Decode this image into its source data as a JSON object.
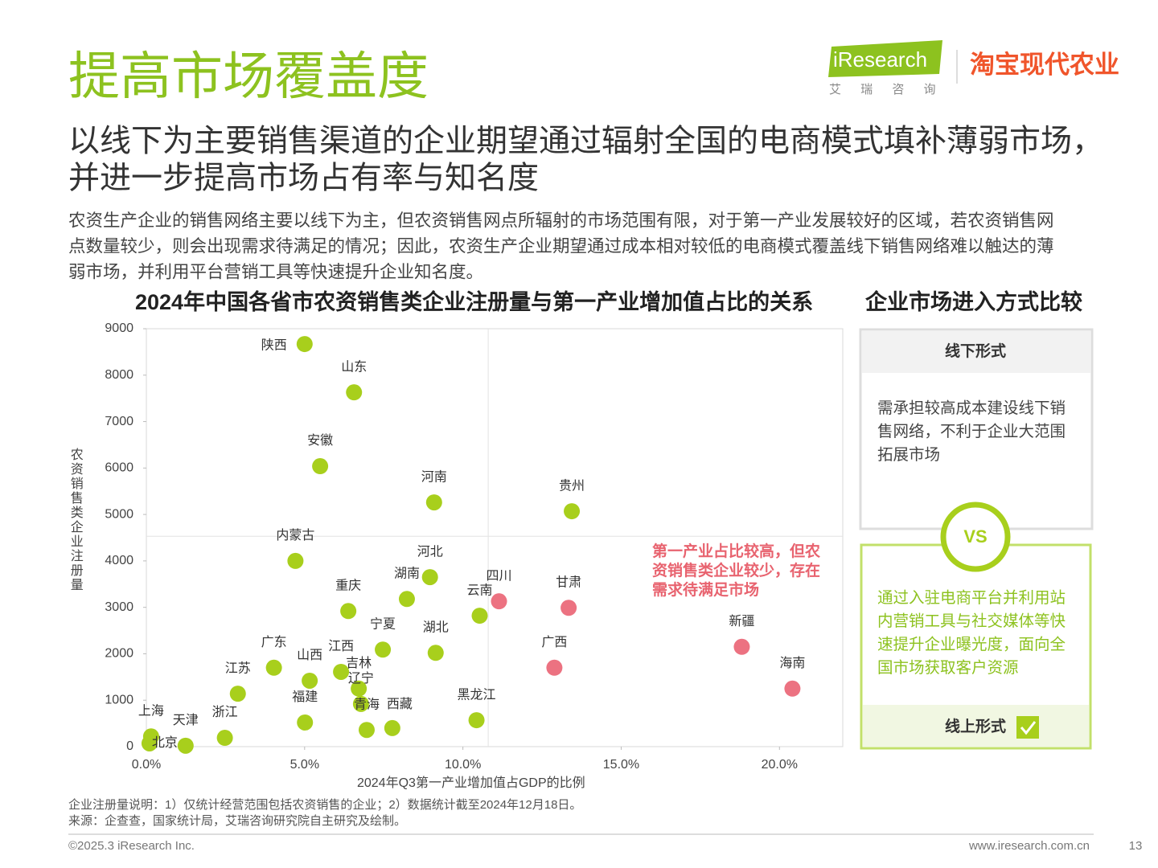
{
  "header": {
    "title": "提高市场覆盖度",
    "subtitle": [
      "以线下为主要销售渠道的企业期望通过辐射全国的电商模式填补薄弱市场，",
      "并进一步提高市场占有率与知名度"
    ],
    "body": [
      "农资生产企业的销售网络主要以线下为主，但农资销售网点所辐射的市场范围有限，对于第一产业发展较好的区域，若农资销售网",
      "点数量较少，则会出现需求待满足的情况；因此，农资生产企业期望通过成本相对较低的电商模式覆盖线下销售网络难以触达的薄",
      "弱市场，并利用平台营销工具等快速提升企业知名度。"
    ]
  },
  "logo": {
    "brand": "iResearch",
    "brand_cn": "艾 瑞 咨 询",
    "partner": "淘宝现代农业"
  },
  "chart_data": {
    "type": "scatter",
    "title": "2024年中国各省市农资销售类企业注册量与第一产业增加值占比的关系",
    "x_label": "2024年Q3第一产业增加值占GDP的比例",
    "y_label": "农资销售类企业注册量",
    "xlim": [
      0,
      22
    ],
    "ylim": [
      0,
      9000
    ],
    "xticks": [
      {
        "value": 0,
        "label": "0.0%"
      },
      {
        "value": 5,
        "label": "5.0%"
      },
      {
        "value": 10,
        "label": "10.0%"
      },
      {
        "value": 15,
        "label": "15.0%"
      },
      {
        "value": 20,
        "label": "20.0%"
      }
    ],
    "yticks": [
      0,
      1000,
      2000,
      3000,
      4000,
      5000,
      6000,
      7000,
      8000,
      9000
    ],
    "reference_lines": {
      "x": 10.8,
      "y": 4530
    },
    "annotation": [
      "第一产业占比较高，但农",
      "资销售类企业较少，存在",
      "需求待满足市场"
    ],
    "annotation_color": "#e8636f",
    "points": [
      {
        "label": "陕西",
        "x": 5.0,
        "y": 8670,
        "color": "#a8cf1c"
      },
      {
        "label": "山东",
        "x": 6.56,
        "y": 7630,
        "color": "#a8cf1c"
      },
      {
        "label": "安徽",
        "x": 5.49,
        "y": 6040,
        "color": "#a8cf1c"
      },
      {
        "label": "河南",
        "x": 9.09,
        "y": 5260,
        "color": "#a8cf1c"
      },
      {
        "label": "贵州",
        "x": 13.44,
        "y": 5070,
        "color": "#a8cf1c"
      },
      {
        "label": "内蒙古",
        "x": 4.71,
        "y": 4000,
        "color": "#a8cf1c"
      },
      {
        "label": "河北",
        "x": 8.96,
        "y": 3650,
        "color": "#a8cf1c"
      },
      {
        "label": "湖南",
        "x": 8.23,
        "y": 3180,
        "color": "#a8cf1c"
      },
      {
        "label": "重庆",
        "x": 6.38,
        "y": 2920,
        "color": "#a8cf1c"
      },
      {
        "label": "云南",
        "x": 10.53,
        "y": 2820,
        "color": "#a8cf1c"
      },
      {
        "label": "四川",
        "x": 11.14,
        "y": 3130,
        "color": "#ec7281"
      },
      {
        "label": "甘肃",
        "x": 13.34,
        "y": 2990,
        "color": "#ec7281"
      },
      {
        "label": "宁夏",
        "x": 7.47,
        "y": 2090,
        "color": "#a8cf1c"
      },
      {
        "label": "湖北",
        "x": 9.14,
        "y": 2020,
        "color": "#a8cf1c"
      },
      {
        "label": "新疆",
        "x": 18.81,
        "y": 2150,
        "color": "#ec7281"
      },
      {
        "label": "广西",
        "x": 12.89,
        "y": 1700,
        "color": "#ec7281"
      },
      {
        "label": "海南",
        "x": 20.41,
        "y": 1250,
        "color": "#ec7281"
      },
      {
        "label": "广东",
        "x": 4.03,
        "y": 1700,
        "color": "#a8cf1c"
      },
      {
        "label": "山西",
        "x": 5.16,
        "y": 1420,
        "color": "#a8cf1c"
      },
      {
        "label": "江西",
        "x": 6.15,
        "y": 1610,
        "color": "#a8cf1c"
      },
      {
        "label": "吉林",
        "x": 6.71,
        "y": 1250,
        "color": "#a8cf1c"
      },
      {
        "label": "辽宁",
        "x": 6.78,
        "y": 920,
        "color": "#a8cf1c"
      },
      {
        "label": "青海",
        "x": 6.96,
        "y": 360,
        "color": "#a8cf1c"
      },
      {
        "label": "西藏",
        "x": 7.77,
        "y": 400,
        "color": "#a8cf1c"
      },
      {
        "label": "江苏",
        "x": 2.89,
        "y": 1140,
        "color": "#a8cf1c"
      },
      {
        "label": "福建",
        "x": 5.01,
        "y": 520,
        "color": "#a8cf1c"
      },
      {
        "label": "黑龙江",
        "x": 10.43,
        "y": 570,
        "color": "#a8cf1c"
      },
      {
        "label": "浙江",
        "x": 2.48,
        "y": 190,
        "color": "#a8cf1c"
      },
      {
        "label": "上海",
        "x": 0.15,
        "y": 220,
        "color": "#a8cf1c"
      },
      {
        "label": "天津",
        "x": 1.24,
        "y": 20,
        "color": "#a8cf1c"
      },
      {
        "label": "北京",
        "x": 0.1,
        "y": 70,
        "color": "#a8cf1c"
      }
    ]
  },
  "comparison": {
    "title": "企业市场进入方式比较",
    "offline": {
      "title": "线下形式",
      "text": [
        "需承担较高成本建设线下销",
        "售网络，不利于企业大范围",
        "拓展市场"
      ]
    },
    "vs": "VS",
    "online": {
      "title": "线上形式",
      "text": [
        "通过入驻电商平台并利用站",
        "内营销工具与社交媒体等快",
        "速提升企业曝光度，面向全",
        "国市场获取客户资源"
      ]
    }
  },
  "footer": {
    "notes": [
      "企业注册量说明：1）仅统计经营范围包括农资销售的企业；2）数据统计截至2024年12月18日。",
      "来源：企查查，国家统计局，艾瑞咨询研究院自主研究及绘制。"
    ],
    "copyright": "©2025.3 iResearch Inc.",
    "url": "www.iresearch.com.cn",
    "page": 13
  }
}
